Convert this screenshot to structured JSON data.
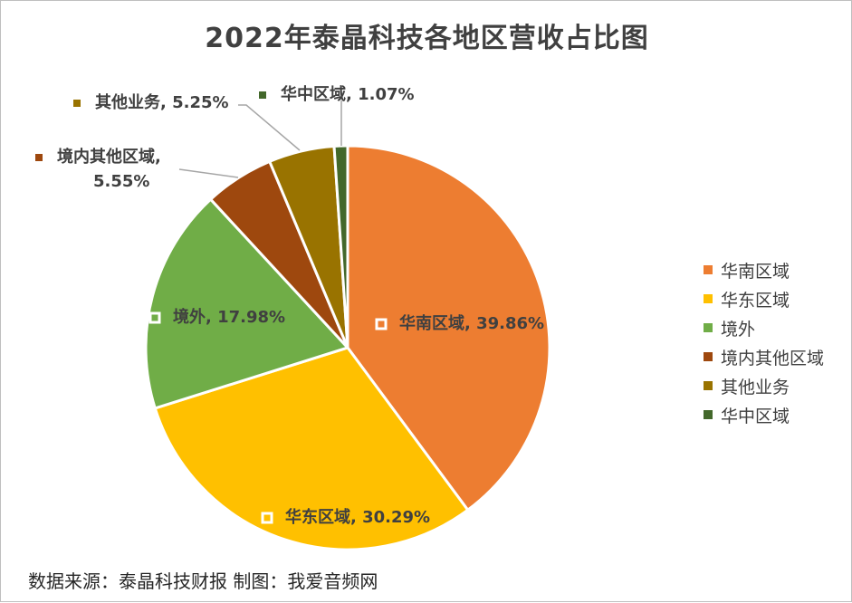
{
  "chart_data": {
    "type": "pie",
    "title": "2022年泰晶科技各地区营收占比图",
    "slices": [
      {
        "label": "华南区域",
        "value": 39.86,
        "value_text": "39.86%",
        "color": "#ED7D31"
      },
      {
        "label": "华东区域",
        "value": 30.29,
        "value_text": "30.29%",
        "color": "#FFC000"
      },
      {
        "label": "境外",
        "value": 17.98,
        "value_text": "17.98%",
        "color": "#70AD47"
      },
      {
        "label": "境内其他区域",
        "value": 5.55,
        "value_text": "5.55%",
        "color": "#9E480E"
      },
      {
        "label": "其他业务",
        "value": 5.25,
        "value_text": "5.25%",
        "color": "#997300"
      },
      {
        "label": "华中区域",
        "value": 1.07,
        "value_text": "1.07%",
        "color": "#43682B"
      }
    ],
    "legend_position": "right"
  },
  "source": "数据来源：泰晶科技财报 制图：我爱音频网"
}
